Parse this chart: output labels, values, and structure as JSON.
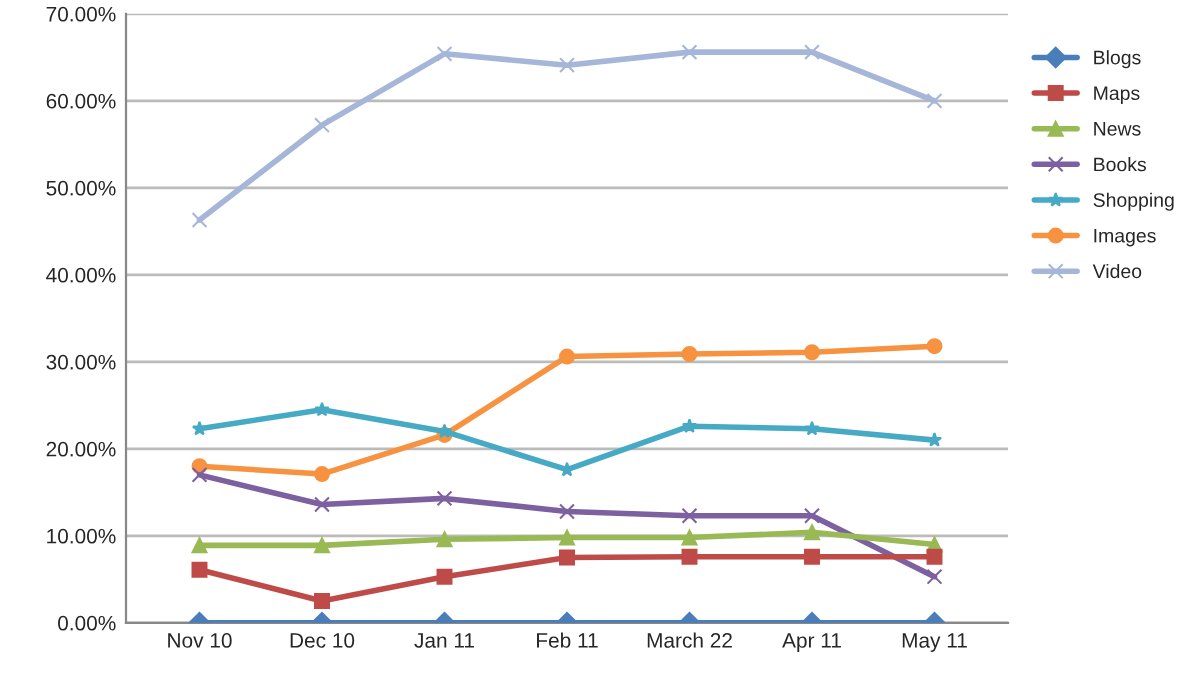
{
  "chart_data": {
    "type": "line",
    "categories": [
      "Nov 10",
      "Dec 10",
      "Jan 11",
      "Feb 11",
      "March 22",
      "Apr 11",
      "May 11"
    ],
    "series": [
      {
        "name": "Blogs",
        "color": "#4a7ebb",
        "marker": "diamond",
        "values": [
          0,
          0,
          0,
          0,
          0,
          0,
          0
        ]
      },
      {
        "name": "Maps",
        "color": "#be4b48",
        "marker": "square",
        "values": [
          6.1,
          2.5,
          5.3,
          7.5,
          7.6,
          7.6,
          7.6
        ]
      },
      {
        "name": "News",
        "color": "#98b954",
        "marker": "triangle",
        "values": [
          8.9,
          8.9,
          9.6,
          9.8,
          9.8,
          10.4,
          9.0
        ]
      },
      {
        "name": "Books",
        "color": "#7d60a0",
        "marker": "cross",
        "values": [
          17.0,
          13.6,
          14.3,
          12.8,
          12.3,
          12.3,
          5.3
        ]
      },
      {
        "name": "Shopping",
        "color": "#46aac5",
        "marker": "star",
        "values": [
          22.3,
          24.5,
          22.0,
          17.6,
          22.6,
          22.3,
          21.0
        ]
      },
      {
        "name": "Images",
        "color": "#f69240",
        "marker": "circle",
        "values": [
          18.0,
          17.1,
          21.6,
          30.6,
          30.9,
          31.1,
          31.8
        ]
      },
      {
        "name": "Video",
        "color": "#a5b6d8",
        "marker": "cross",
        "values": [
          46.3,
          57.2,
          65.4,
          64.1,
          65.6,
          65.6,
          60.0
        ]
      }
    ],
    "ylim": [
      0,
      70
    ],
    "yticks": [
      {
        "value": 0,
        "label": "0.00%"
      },
      {
        "value": 10,
        "label": "10.00%"
      },
      {
        "value": 20,
        "label": "20.00%"
      },
      {
        "value": 30,
        "label": "30.00%"
      },
      {
        "value": 40,
        "label": "40.00%"
      },
      {
        "value": 50,
        "label": "50.00%"
      },
      {
        "value": 60,
        "label": "60.00%"
      },
      {
        "value": 70,
        "label": "70.00%"
      }
    ],
    "grid": "y",
    "legend": "right"
  }
}
